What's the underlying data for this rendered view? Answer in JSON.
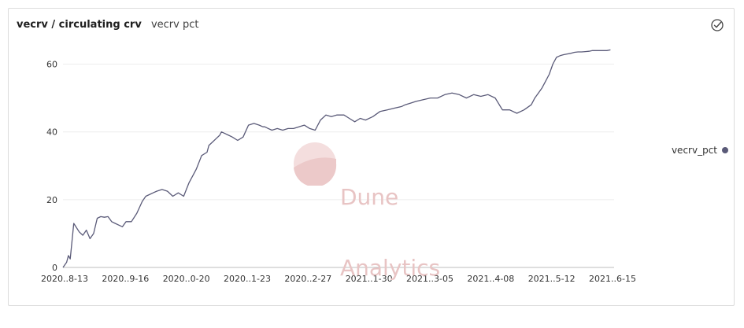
{
  "header": {
    "title": "vecrv / circulating crv",
    "subtitle": "vecrv pct"
  },
  "icons": {
    "status": "check-circle-icon"
  },
  "watermark": {
    "line1": "Dune",
    "line2": "Analytics"
  },
  "colors": {
    "line": "#5a5a78",
    "grid": "#ececec",
    "watermark": "#e8c4c4"
  },
  "chart_data": {
    "type": "line",
    "title": "",
    "xlabel": "",
    "ylabel": "",
    "ylim": [
      0,
      65
    ],
    "yticks": [
      0,
      20,
      40,
      60
    ],
    "xtick_labels": [
      "2020..8-13",
      "2020..9-16",
      "2020..0-20",
      "2020..1-23",
      "2020..2-27",
      "2021..1-30",
      "2021..3-05",
      "2021..4-08",
      "2021..5-12",
      "2021..6-15"
    ],
    "xlim": [
      0,
      306
    ],
    "grid": true,
    "legend_position": "right",
    "series": [
      {
        "name": "vecrv_pct",
        "color": "#5a5a78",
        "x": [
          0,
          2,
          3,
          4,
          6,
          9,
          11,
          13,
          15,
          17,
          19,
          21,
          23,
          25,
          27,
          29,
          31,
          33,
          35,
          38,
          41,
          44,
          46,
          48,
          50,
          52,
          55,
          58,
          61,
          64,
          67,
          70,
          73,
          74,
          77,
          80,
          81,
          83,
          85,
          87,
          88,
          90,
          92,
          94,
          97,
          100,
          103,
          106,
          109,
          111,
          112,
          114,
          116,
          119,
          122,
          125,
          128,
          131,
          134,
          137,
          140,
          143,
          146,
          149,
          152,
          154,
          156,
          159,
          162,
          165,
          168,
          172,
          176,
          180,
          184,
          188,
          190,
          193,
          196,
          200,
          204,
          208,
          212,
          216,
          220,
          224,
          228,
          232,
          236,
          240,
          244,
          248,
          252,
          256,
          260,
          262,
          264,
          266,
          268,
          270,
          272,
          274,
          276,
          278,
          280,
          282,
          284,
          286,
          288,
          290,
          292,
          294,
          296,
          298,
          300,
          302,
          304
        ],
        "values": [
          0,
          1.5,
          3.5,
          2.5,
          13,
          10.5,
          9.5,
          11,
          8.5,
          10,
          14.5,
          15,
          14.8,
          15,
          13.5,
          13,
          12.5,
          12,
          13.5,
          13.5,
          16,
          19.5,
          21,
          21.5,
          22,
          22.5,
          23,
          22.5,
          21,
          22,
          21,
          25,
          28,
          29,
          33,
          34,
          36,
          37,
          38,
          39,
          40,
          39.5,
          39,
          38.5,
          37.5,
          38.5,
          42,
          42.5,
          42,
          41.5,
          41.5,
          41,
          40.5,
          41,
          40.5,
          41,
          41,
          41.5,
          42,
          41,
          40.5,
          43.5,
          45,
          44.5,
          45,
          45,
          45,
          44,
          43,
          44,
          43.5,
          44.5,
          46,
          46.5,
          47,
          47.5,
          48,
          48.5,
          49,
          49.5,
          50,
          50,
          51,
          51.5,
          51,
          50,
          51,
          50.5,
          51,
          50,
          46.5,
          46.5,
          45.5,
          46.5,
          48,
          50,
          51.5,
          53,
          55,
          57,
          60,
          62,
          62.5,
          62.8,
          63,
          63.2,
          63.5,
          63.6,
          63.6,
          63.7,
          63.8,
          64,
          64,
          64,
          64,
          64,
          64.2
        ]
      }
    ]
  }
}
